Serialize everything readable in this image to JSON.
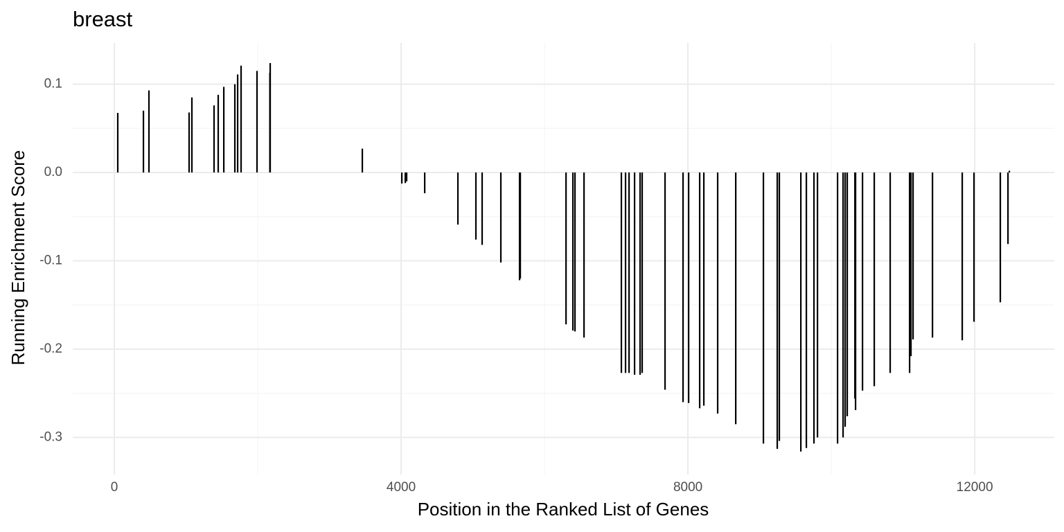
{
  "chart_data": {
    "type": "segment",
    "title": "breast",
    "x_label": "Position in the Ranked List of Genes",
    "y_label": "Running Enrichment Score",
    "x": [
      48,
      406,
      483,
      1043,
      1082,
      1391,
      1449,
      1527,
      1681,
      1720,
      1768,
      1990,
      2170,
      2174,
      3459,
      4010,
      4058,
      4077,
      4329,
      4792,
      5043,
      5130,
      5391,
      5652,
      5662,
      6300,
      6396,
      6425,
      6551,
      7072,
      7130,
      7179,
      7256,
      7333,
      7362,
      7681,
      7932,
      8010,
      8164,
      8222,
      8415,
      8667,
      9053,
      9246,
      9275,
      9575,
      9652,
      9758,
      9807,
      10087,
      10164,
      10193,
      10222,
      10329,
      10338,
      10435,
      10599,
      10821,
      11092,
      11111,
      11140,
      11411,
      11826,
      11990,
      12357,
      12464,
      12483
    ],
    "values": [
      0.0675,
      0.07,
      0.093,
      0.068,
      0.085,
      0.076,
      0.088,
      0.097,
      0.1,
      0.111,
      0.121,
      0.115,
      0.113,
      0.124,
      0.027,
      -0.0125,
      -0.012,
      -0.01,
      -0.0235,
      -0.059,
      -0.076,
      -0.082,
      -0.102,
      -0.122,
      -0.12,
      -0.172,
      -0.179,
      -0.18,
      -0.187,
      -0.227,
      -0.227,
      -0.227,
      -0.229,
      -0.229,
      -0.227,
      -0.246,
      -0.26,
      -0.261,
      -0.267,
      -0.264,
      -0.273,
      -0.285,
      -0.307,
      -0.313,
      -0.304,
      -0.316,
      -0.312,
      -0.307,
      -0.3,
      -0.307,
      -0.3,
      -0.288,
      -0.276,
      -0.256,
      -0.269,
      -0.247,
      -0.242,
      -0.227,
      -0.227,
      -0.208,
      -0.189,
      -0.187,
      -0.19,
      -0.169,
      -0.147,
      -0.081,
      0.002
    ],
    "color": "#000000",
    "xlim": [
      -580,
      13110
    ],
    "xticks": [
      0,
      4000,
      8000,
      12000
    ],
    "xminor": [
      2000,
      6000,
      10000
    ],
    "ylim": [
      -0.342,
      0.1467
    ],
    "yticks": [
      {
        "value": -0.3,
        "label": "-0.3"
      },
      {
        "value": -0.2,
        "label": "-0.2"
      },
      {
        "value": -0.1,
        "label": "-0.1"
      },
      {
        "value": 0,
        "label": "0.0"
      },
      0.1
    ],
    "yminor": [
      -0.25,
      -0.15,
      -0.05,
      0.05
    ],
    "grid": true
  }
}
